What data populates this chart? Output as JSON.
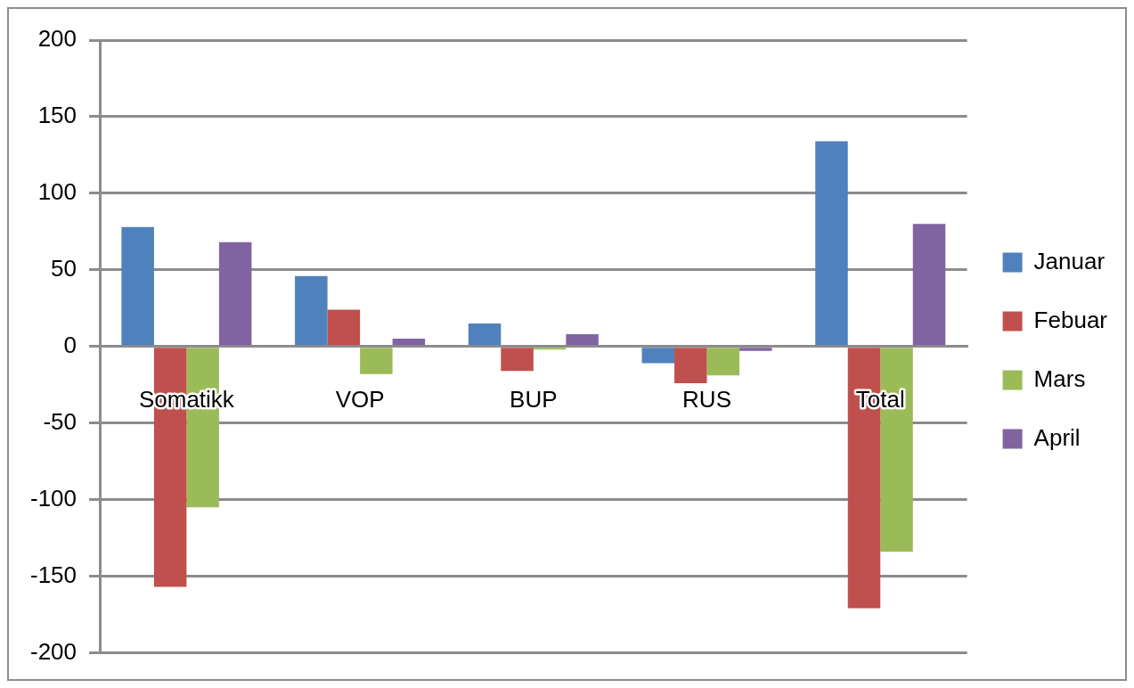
{
  "chart_data": {
    "type": "bar",
    "categories": [
      "Somatikk",
      "VOP",
      "BUP",
      "RUS",
      "Total"
    ],
    "series": [
      {
        "name": "Januar",
        "color": "#4f81bd",
        "values": [
          78,
          46,
          15,
          -11,
          134
        ]
      },
      {
        "name": "Febuar",
        "color": "#c0504d",
        "values": [
          -157,
          24,
          -16,
          -24,
          -171
        ]
      },
      {
        "name": "Mars",
        "color": "#9bbb59",
        "values": [
          -105,
          -18,
          -2,
          -19,
          -134
        ]
      },
      {
        "name": "April",
        "color": "#8064a2",
        "values": [
          68,
          5,
          8,
          -3,
          80
        ]
      }
    ],
    "ylim": [
      -200,
      200
    ],
    "yticks": [
      -200,
      -150,
      -100,
      -50,
      0,
      50,
      100,
      150,
      200
    ],
    "grid": "y",
    "legend": "right"
  }
}
